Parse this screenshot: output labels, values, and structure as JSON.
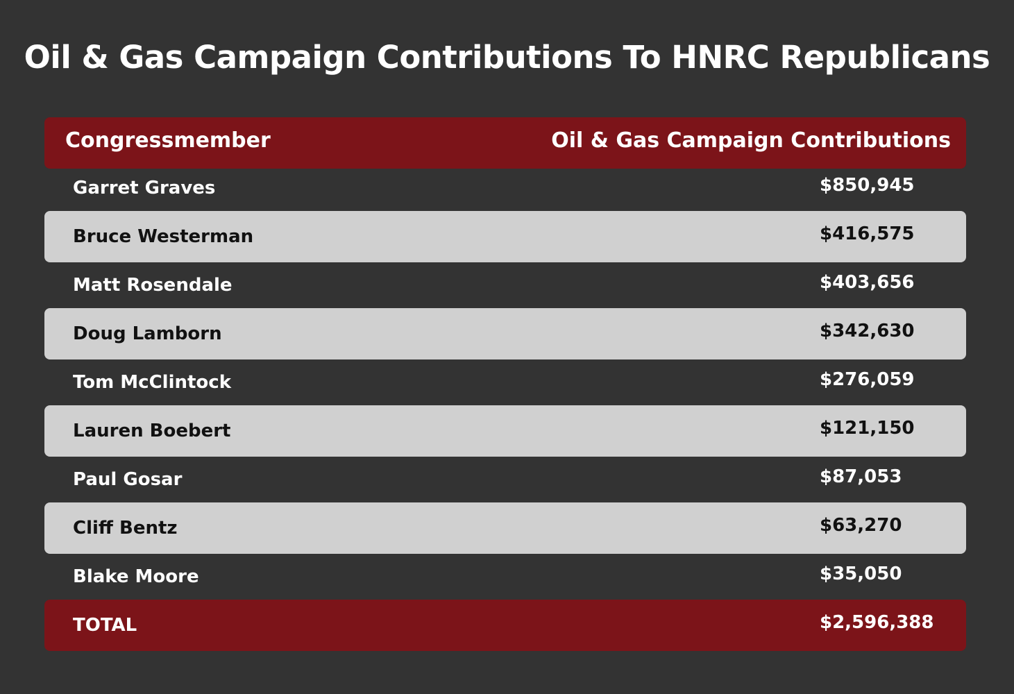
{
  "chart_data": {
    "type": "table",
    "title": "Oil & Gas Campaign Contributions To HNRC Republicans",
    "columns": [
      "Congressmember",
      "Oil & Gas Campaign Contributions"
    ],
    "rows": [
      {
        "name": "Garret Graves",
        "value": "$850,945"
      },
      {
        "name": "Bruce Westerman",
        "value": "$416,575"
      },
      {
        "name": "Matt Rosendale",
        "value": "$403,656"
      },
      {
        "name": "Doug Lamborn",
        "value": "$342,630"
      },
      {
        "name": "Tom McClintock",
        "value": "$276,059"
      },
      {
        "name": "Lauren Boebert",
        "value": "$121,150"
      },
      {
        "name": "Paul Gosar",
        "value": "$87,053"
      },
      {
        "name": "Cliff Bentz",
        "value": "$63,270"
      },
      {
        "name": "Blake Moore",
        "value": "$35,050"
      }
    ],
    "total": {
      "name": "TOTAL",
      "value": "$2,596,388"
    }
  },
  "colors": {
    "background": "#333333",
    "header": "#7c1419",
    "shaded_row": "#d0d0d0",
    "text_light": "#ffffff",
    "text_dark": "#111111"
  }
}
